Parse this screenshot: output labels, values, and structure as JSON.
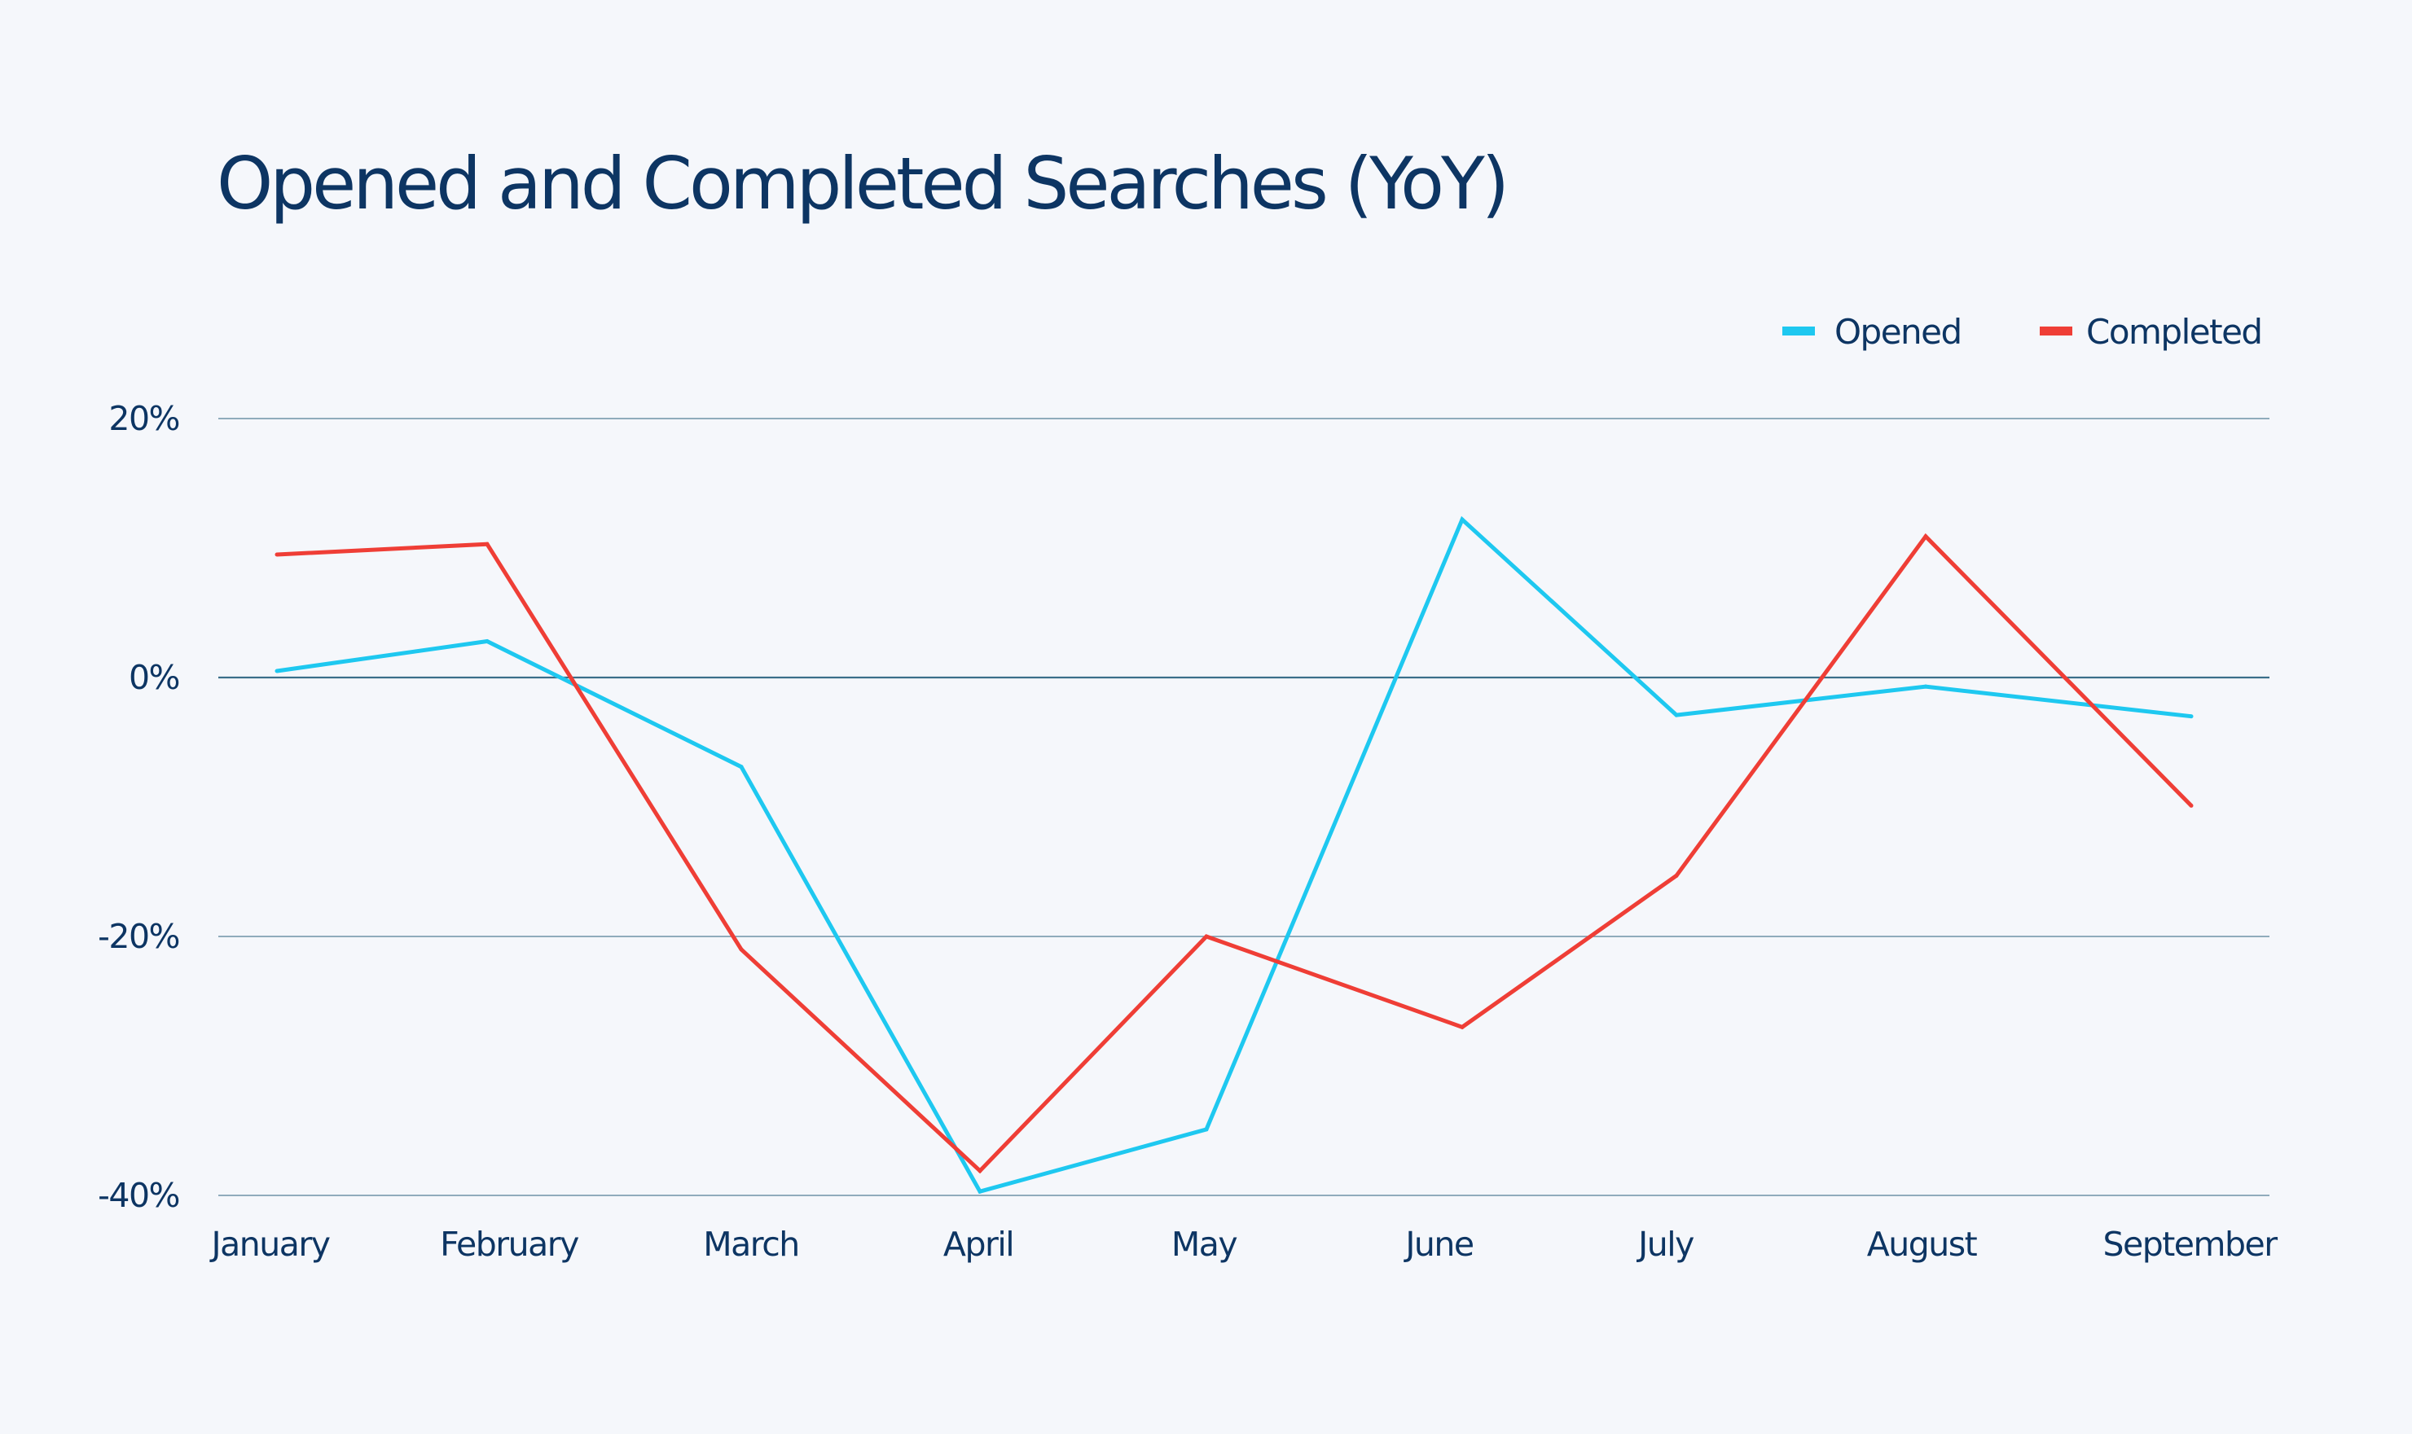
{
  "chart_data": {
    "type": "line",
    "title": "Opened and Completed Searches (YoY)",
    "xlabel": "",
    "ylabel": "",
    "ylim": [
      -40,
      20
    ],
    "y_ticks": [
      20,
      0,
      -20,
      -40
    ],
    "y_tick_labels": [
      "20%",
      "0%",
      "-20%",
      "-40%"
    ],
    "categories": [
      "January",
      "February",
      "March",
      "April",
      "May",
      "June",
      "July",
      "August",
      "September"
    ],
    "series": [
      {
        "name": "Opened",
        "color": "#1ec8f0",
        "values": [
          0.5,
          2.8,
          -6.9,
          -39.7,
          -34.9,
          12.2,
          -2.9,
          -0.7,
          -3.0
        ]
      },
      {
        "name": "Completed",
        "color": "#ef3e36",
        "values": [
          9.5,
          10.3,
          -21.0,
          -38.1,
          -20.0,
          -27.0,
          -15.3,
          10.9,
          -9.9
        ]
      }
    ],
    "grid": true,
    "legend_position": "top-right"
  }
}
